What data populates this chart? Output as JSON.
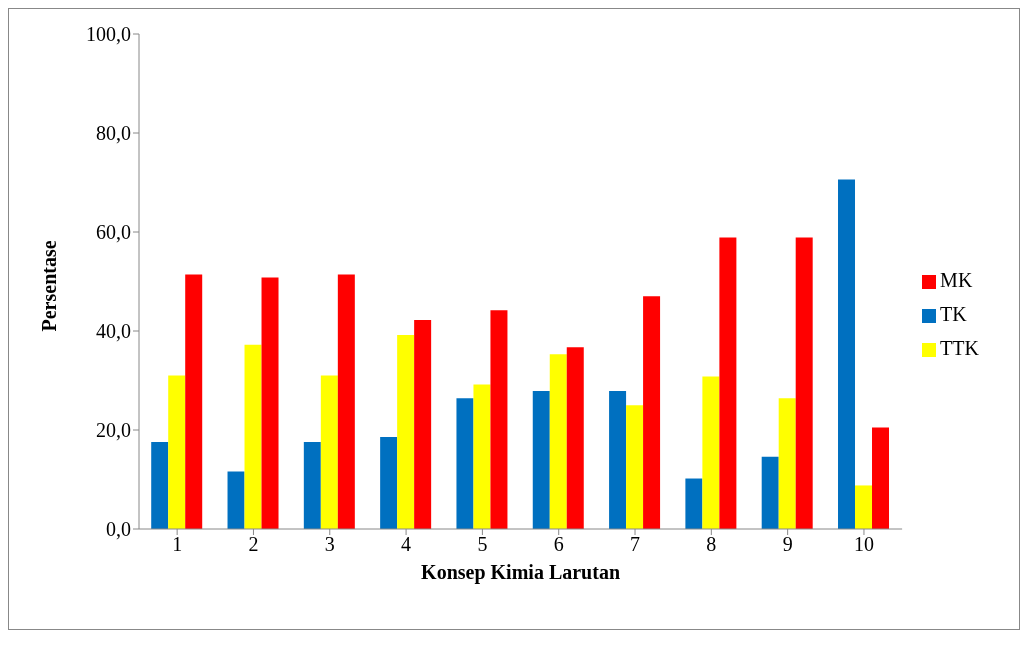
{
  "chart_data": {
    "type": "bar",
    "xlabel": "Konsep Kimia Larutan",
    "ylabel": "Persentase",
    "categories": [
      "1",
      "2",
      "3",
      "4",
      "5",
      "6",
      "7",
      "8",
      "9",
      "10"
    ],
    "series": [
      {
        "name": "TK",
        "color": "#0070c0",
        "values": [
          17.6,
          11.6,
          17.6,
          18.6,
          26.4,
          27.9,
          27.9,
          10.2,
          14.6,
          70.6
        ]
      },
      {
        "name": "TTK",
        "color": "#ffff00",
        "values": [
          31.0,
          37.2,
          31.0,
          39.2,
          29.2,
          35.3,
          25.0,
          30.8,
          26.4,
          8.8
        ]
      },
      {
        "name": "MK",
        "color": "#ff0000",
        "values": [
          51.4,
          50.8,
          51.4,
          42.2,
          44.2,
          36.7,
          47.0,
          58.9,
          58.9,
          20.5
        ]
      }
    ],
    "ylim": [
      0,
      100
    ],
    "yticks": [
      {
        "value": 0,
        "label": "0,0"
      },
      {
        "value": 20,
        "label": "20,0"
      },
      {
        "value": 40,
        "label": "40,0"
      },
      {
        "value": 60,
        "label": "60,0"
      },
      {
        "value": 80,
        "label": "80,0"
      },
      {
        "value": 100,
        "label": "100,0"
      }
    ],
    "grid": false,
    "legend": "right"
  }
}
